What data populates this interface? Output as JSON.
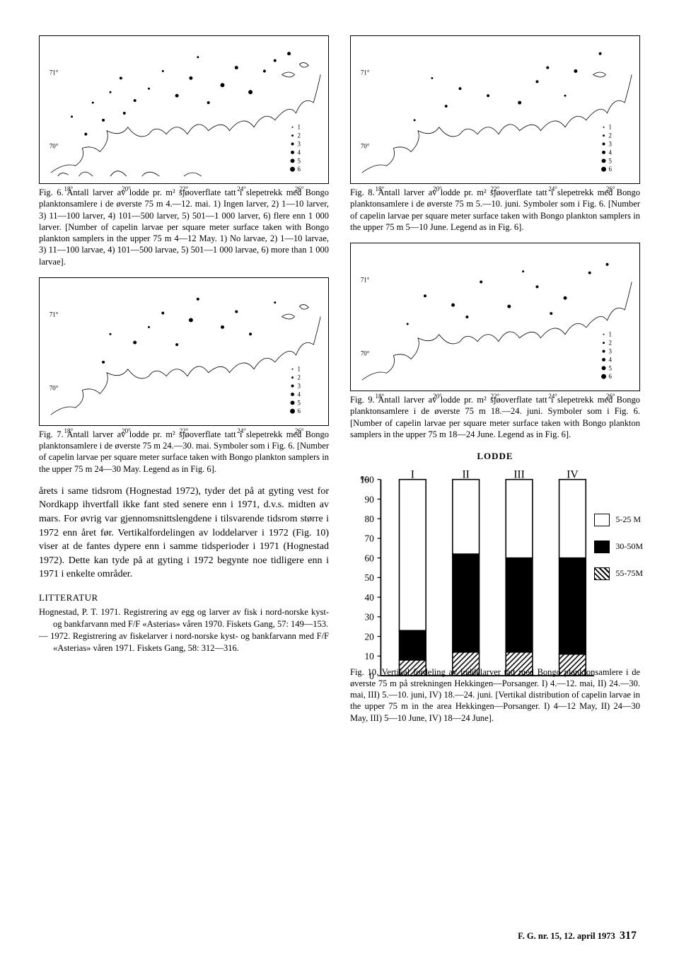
{
  "maps": {
    "lat_labels": [
      "71°",
      "70°"
    ],
    "lon_labels": [
      "18°",
      "20°",
      "22°",
      "24°",
      "26°"
    ],
    "legend_items": [
      "1",
      "2",
      "3",
      "4",
      "5",
      "6"
    ]
  },
  "fig6": {
    "caption": "Fig. 6. Antall larver av lodde pr. m² sjøoverflate tatt i slepetrekk med Bongo planktonsamlere i de øverste 75 m 4.—12. mai. 1) Ingen larver, 2) 1—10 larver, 3) 11—100 larver, 4) 101—500 larver, 5) 501—1 000 larver, 6) flere enn 1 000 larver. [Number of capelin larvae per square meter surface taken with Bongo plankton samplers in the upper 75 m 4—12 May. 1) No larvae, 2) 1—10 larvae, 3) 11—100 larvae, 4) 101—500 larvae, 5) 501—1 000 larvae, 6) more than 1 000 larvae]."
  },
  "fig7": {
    "caption": "Fig. 7. Antall larver av lodde pr. m² sjøoverflate tatt i slepetrekk med Bongo planktonsamlere i de øverste 75 m 24.—30. mai. Symboler som i Fig. 6. [Number of capelin larvae per square meter surface taken with Bongo plankton samplers in the upper 75 m 24—30 May. Legend as in Fig. 6]."
  },
  "fig8": {
    "caption": "Fig. 8. Antall larver av lodde pr. m² sjøoverflate tatt i slepetrekk med Bongo planktonsamlere i de øverste 75 m 5.—10. juni. Symboler som i Fig. 6. [Number of capelin larvae per square meter surface taken with Bongo plankton samplers in the upper 75 m 5—10 June. Legend as in Fig. 6]."
  },
  "fig9": {
    "caption": "Fig. 9. Antall larver av lodde pr. m² sjøoverflate tatt i slepetrekk med Bongo planktonsamlere i de øverste 75 m 18.—24. juni. Symboler som i Fig. 6. [Number of capelin larvae per square meter surface taken with Bongo plankton samplers in the upper 75 m 18—24 June. Legend as in Fig. 6]."
  },
  "body": {
    "para": "årets i same tidsrom (Hognestad 1972), tyder det på at gyting vest for Nordkapp ihvertfall ikke fant sted senere enn i 1971, d.v.s. midten av mars. For øvrig var gjennomsnittslengdene i tilsvarende tidsrom større i 1972 enn året før. Vertikalfordelingen av loddelarver i 1972 (Fig. 10) viser at de fantes dypere enn i samme tidsperioder i 1971 (Hognestad 1972). Dette kan tyde på at gyting i 1972 begynte noe tidligere enn i 1971 i enkelte områder."
  },
  "litteratur": {
    "heading": "LITTERATUR",
    "ref1": "Hognestad, P. T. 1971. Registrering av egg og larver av fisk i nord-norske kyst- og bankfarvann med F/F «Asterias» våren 1970. Fiskets Gang, 57: 149—153.",
    "ref2": "— 1972. Registrering av fiskelarver i nord-norske kyst- og bankfarvann med F/F «Asterias» våren 1971. Fiskets Gang, 58: 312—316."
  },
  "chart": {
    "title": "LODDE",
    "type": "stacked-bar",
    "ylabel": "%",
    "ylim": [
      0,
      100
    ],
    "ytick_step": 10,
    "categories": [
      "I",
      "II",
      "III",
      "IV"
    ],
    "series": [
      {
        "name": "5-25 M",
        "color": "#ffffff",
        "pattern": "open"
      },
      {
        "name": "30-50M",
        "color": "#000000",
        "pattern": "solid"
      },
      {
        "name": "55-75M",
        "color": "#ffffff",
        "pattern": "hatch"
      }
    ],
    "stacks": [
      {
        "open": 77,
        "solid": 15,
        "hatch": 8
      },
      {
        "open": 38,
        "solid": 50,
        "hatch": 12
      },
      {
        "open": 40,
        "solid": 48,
        "hatch": 12
      },
      {
        "open": 40,
        "solid": 49,
        "hatch": 11
      }
    ],
    "bar_width": 0.5,
    "axis_color": "#000000",
    "background": "#ffffff",
    "label_fontsize": 12,
    "legend_items": [
      "5-25 M",
      "30-50M",
      "55-75M"
    ]
  },
  "fig10": {
    "caption": "Fig. 10. Vertikal fordeling av loddelarver tatt med Bongo planktonsamlere i de øverste 75 m på strekningen Hekkingen—Porsanger. I) 4.—12. mai, II) 24.—30. mai, III) 5.—10. juni, IV) 18.—24. juni. [Vertikal distribution of capelin larvae in the upper 75 m in the area Hekkingen—Porsanger. I) 4—12 May, II) 24—30 May, III) 5—10 June, IV) 18—24 June]."
  },
  "footer": {
    "text": "F. G. nr. 15, 12. april 1973",
    "page": "317"
  }
}
